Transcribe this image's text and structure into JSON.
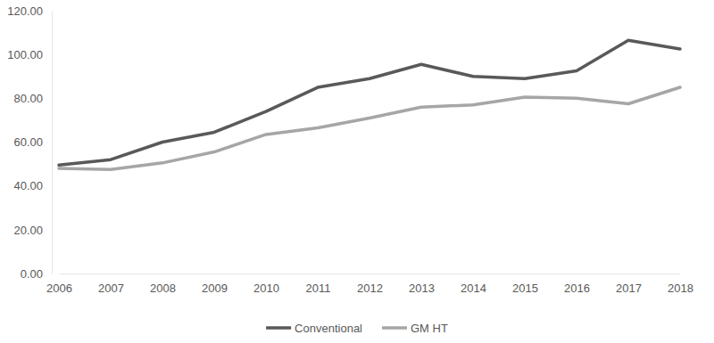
{
  "chart_data": {
    "type": "line",
    "categories": [
      "2006",
      "2007",
      "2008",
      "2009",
      "2010",
      "2011",
      "2012",
      "2013",
      "2014",
      "2015",
      "2016",
      "2017",
      "2018"
    ],
    "series": [
      {
        "name": "Conventional",
        "color": "#595959",
        "values": [
          49.5,
          52,
          60,
          64.5,
          74,
          85,
          89,
          95.5,
          90,
          89,
          92.5,
          106.5,
          102.5
        ]
      },
      {
        "name": "GM HT",
        "color": "#a6a6a6",
        "values": [
          48,
          47.5,
          50.5,
          55.5,
          63.5,
          66.5,
          71,
          76,
          77,
          80.5,
          80,
          77.5,
          85
        ]
      }
    ],
    "ylim": [
      0,
      120
    ],
    "yticks": [
      {
        "value": 0,
        "label": "0.00"
      },
      {
        "value": 20,
        "label": "20.00"
      },
      {
        "value": 40,
        "label": "40.00"
      },
      {
        "value": 60,
        "label": "60.00"
      },
      {
        "value": 80,
        "label": "80.00"
      },
      {
        "value": 100,
        "label": "100.00"
      },
      {
        "value": 120,
        "label": "120.00"
      }
    ],
    "grid": false,
    "legend": "bottom"
  }
}
